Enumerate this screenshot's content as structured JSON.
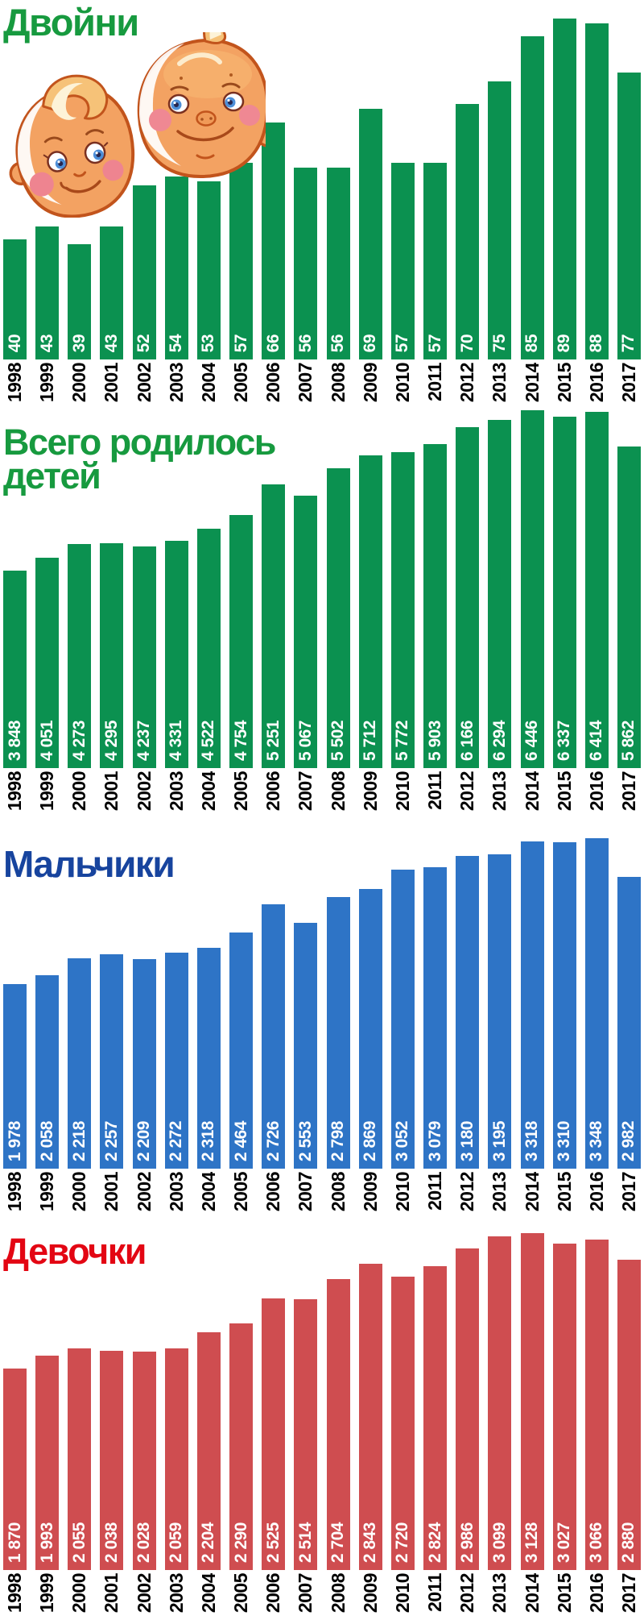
{
  "page": {
    "background": "#ffffff"
  },
  "illustration": {
    "name": "twin-babies-illustration"
  },
  "chart_data": [
    {
      "type": "bar",
      "id": "twins",
      "title": "Двойни",
      "title_lines": [
        "Двойни"
      ],
      "title_color": "#179a3f",
      "bar_color": "#0b9150",
      "value_label_color": "#ffffff",
      "axis_label_color": "#000000",
      "categories": [
        "1998",
        "1999",
        "2000",
        "2001",
        "2002",
        "2003",
        "2004",
        "2005",
        "2006",
        "2007",
        "2008",
        "2009",
        "2010",
        "2011",
        "2012",
        "2013",
        "2014",
        "2015",
        "2016",
        "2017"
      ],
      "values": [
        40,
        43,
        39,
        43,
        52,
        54,
        53,
        57,
        66,
        56,
        56,
        69,
        57,
        57,
        70,
        75,
        85,
        89,
        88,
        77
      ],
      "value_labels": [
        "40",
        "43",
        "39",
        "43",
        "52",
        "54",
        "53",
        "57",
        "66",
        "56",
        "56",
        "69",
        "57",
        "57",
        "70",
        "75",
        "85",
        "89",
        "88",
        "77"
      ],
      "value_range": [
        39,
        89
      ],
      "grid": false,
      "legend": "none"
    },
    {
      "type": "bar",
      "id": "total-born",
      "title": "Всего родилось детей",
      "title_lines": [
        "Всего родилось",
        "детей"
      ],
      "title_color": "#179a3f",
      "bar_color": "#0b9150",
      "value_label_color": "#ffffff",
      "axis_label_color": "#000000",
      "categories": [
        "1998",
        "1999",
        "2000",
        "2001",
        "2002",
        "2003",
        "2004",
        "2005",
        "2006",
        "2007",
        "2008",
        "2009",
        "2010",
        "2011",
        "2012",
        "2013",
        "2014",
        "2015",
        "2016",
        "2017"
      ],
      "values": [
        3848,
        4051,
        4273,
        4295,
        4237,
        4331,
        4522,
        4754,
        5251,
        5067,
        5502,
        5712,
        5772,
        5903,
        6166,
        6294,
        6446,
        6337,
        6414,
        5862
      ],
      "value_labels": [
        "3 848",
        "4 051",
        "4 273",
        "4 295",
        "4 237",
        "4 331",
        "4 522",
        "4 754",
        "5 251",
        "5 067",
        "5 502",
        "5 712",
        "5 772",
        "5 903",
        "6 166",
        "6 294",
        "6 446",
        "6 337",
        "6 414",
        "5 862"
      ],
      "value_range": [
        3848,
        6446
      ],
      "grid": false,
      "legend": "none"
    },
    {
      "type": "bar",
      "id": "boys",
      "title": "Мальчики",
      "title_lines": [
        "Мальчики"
      ],
      "title_color": "#17449e",
      "bar_color": "#2e74c6",
      "value_label_color": "#ffffff",
      "axis_label_color": "#000000",
      "categories": [
        "1998",
        "1999",
        "2000",
        "2001",
        "2002",
        "2003",
        "2004",
        "2005",
        "2006",
        "2007",
        "2008",
        "2009",
        "2010",
        "2011",
        "2012",
        "2013",
        "2014",
        "2015",
        "2016",
        "2017"
      ],
      "values": [
        1978,
        2058,
        2218,
        2257,
        2209,
        2272,
        2318,
        2464,
        2726,
        2553,
        2798,
        2869,
        3052,
        3079,
        3180,
        3195,
        3318,
        3310,
        3348,
        2982
      ],
      "value_labels": [
        "1 978",
        "2 058",
        "2 218",
        "2 257",
        "2 209",
        "2 272",
        "2 318",
        "2 464",
        "2 726",
        "2 553",
        "2 798",
        "2 869",
        "3 052",
        "3 079",
        "3 180",
        "3 195",
        "3 318",
        "3 310",
        "3 348",
        "2 982"
      ],
      "value_range": [
        1978,
        3348
      ],
      "grid": false,
      "legend": "none"
    },
    {
      "type": "bar",
      "id": "girls",
      "title": "Девочки",
      "title_lines": [
        "Девочки"
      ],
      "title_color": "#e30613",
      "bar_color": "#cf4d50",
      "value_label_color": "#ffffff",
      "axis_label_color": "#000000",
      "categories": [
        "1998",
        "1999",
        "2000",
        "2001",
        "2002",
        "2003",
        "2004",
        "2005",
        "2006",
        "2007",
        "2008",
        "2009",
        "2010",
        "2011",
        "2012",
        "2013",
        "2014",
        "2015",
        "2016",
        "2017"
      ],
      "values": [
        1870,
        1993,
        2055,
        2038,
        2028,
        2059,
        2204,
        2290,
        2525,
        2514,
        2704,
        2843,
        2720,
        2824,
        2986,
        3099,
        3128,
        3027,
        3066,
        2880
      ],
      "value_labels": [
        "1 870",
        "1 993",
        "2 055",
        "2 038",
        "2 028",
        "2 059",
        "2 204",
        "2 290",
        "2 525",
        "2 514",
        "2 704",
        "2 843",
        "2 720",
        "2 824",
        "2 986",
        "3 099",
        "3 128",
        "3 027",
        "3 066",
        "2 880"
      ],
      "value_range": [
        1870,
        3128
      ],
      "grid": false,
      "legend": "none"
    }
  ]
}
